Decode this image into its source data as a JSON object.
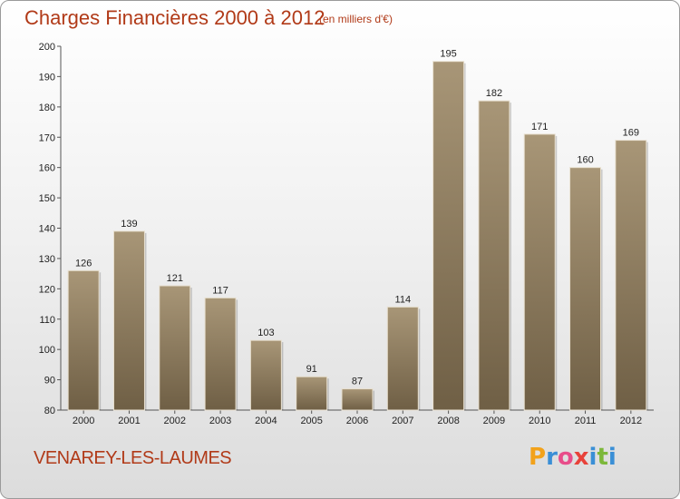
{
  "header": {
    "title": "Charges Financières 2000 à 2012",
    "subtitle": "(en milliers d'€)"
  },
  "footer": {
    "commune": "VENAREY-LES-LAUMES",
    "brand_letters": [
      "P",
      "r",
      "o",
      "x",
      "i",
      "t",
      "i"
    ],
    "brand_colors": [
      "#f2a21b",
      "#3a8fd6",
      "#e84d8a",
      "#e8423a",
      "#3a8fd6",
      "#7cb83a",
      "#3a8fd6"
    ]
  },
  "chart_data": {
    "type": "bar",
    "title": "Charges Financières 2000 à 2012",
    "subtitle": "(en milliers d'€)",
    "xlabel": "",
    "ylabel": "",
    "categories": [
      "2000",
      "2001",
      "2002",
      "2003",
      "2004",
      "2005",
      "2006",
      "2007",
      "2008",
      "2009",
      "2010",
      "2011",
      "2012"
    ],
    "values": [
      126,
      139,
      121,
      117,
      103,
      91,
      87,
      114,
      195,
      182,
      171,
      160,
      169
    ],
    "ylim": [
      80,
      200
    ],
    "yticks": [
      80,
      90,
      100,
      110,
      120,
      130,
      140,
      150,
      160,
      170,
      180,
      190,
      200
    ],
    "grid": false,
    "bar_color_top": "#a89677",
    "bar_color_bottom": "#6f5f45"
  }
}
